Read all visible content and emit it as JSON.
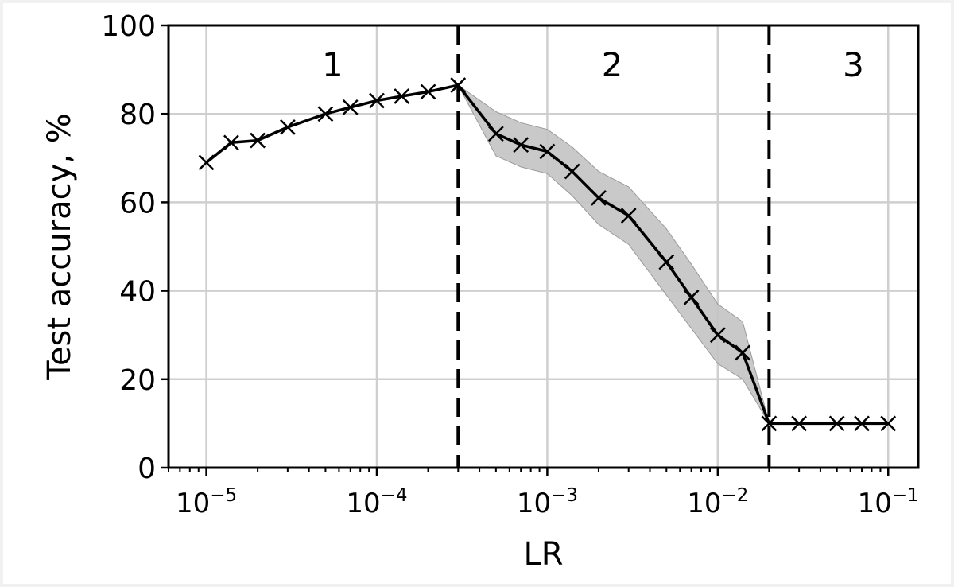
{
  "chart_data": {
    "type": "line",
    "xscale": "log",
    "xlim": [
      6e-06,
      0.15
    ],
    "ylim": [
      0,
      100
    ],
    "xlabel": "LR",
    "ylabel": "Test accuracy, %",
    "grid": true,
    "x_ticks": [
      {
        "value": 1e-05,
        "base": "10",
        "exp": "−5"
      },
      {
        "value": 0.0001,
        "base": "10",
        "exp": "−4"
      },
      {
        "value": 0.001,
        "base": "10",
        "exp": "−3"
      },
      {
        "value": 0.01,
        "base": "10",
        "exp": "−2"
      },
      {
        "value": 0.1,
        "base": "10",
        "exp": "−1"
      }
    ],
    "y_ticks": [
      0,
      20,
      40,
      60,
      80,
      100
    ],
    "vlines": [
      0.0003,
      0.02
    ],
    "regions": [
      {
        "label": "1",
        "x": 5.5e-05
      },
      {
        "label": "2",
        "x": 0.0024
      },
      {
        "label": "3",
        "x": 0.0625
      }
    ],
    "series": [
      {
        "x": [
          1e-05,
          1.4e-05,
          2e-05,
          3e-05,
          5e-05,
          7e-05,
          0.0001,
          0.00014,
          0.0002,
          0.0003,
          0.0005,
          0.0007,
          0.001,
          0.0014,
          0.002,
          0.003,
          0.005,
          0.007,
          0.01,
          0.014,
          0.02,
          0.03,
          0.05,
          0.07,
          0.1
        ],
        "y": [
          69,
          73.5,
          74,
          77,
          80,
          81.5,
          83,
          84,
          85,
          86.5,
          75.5,
          73,
          71.5,
          67,
          61,
          57,
          46.5,
          38.5,
          30,
          26,
          10,
          10,
          10,
          10,
          10
        ],
        "band_lower": [
          69,
          73.5,
          74,
          77,
          80,
          81.5,
          83,
          84,
          85,
          86.5,
          70.5,
          68,
          66.5,
          61.5,
          55,
          50.5,
          39,
          31.5,
          23.5,
          20,
          10,
          10,
          10,
          10,
          10
        ],
        "band_upper": [
          69,
          73.5,
          74,
          77,
          80,
          81.5,
          83,
          84,
          85,
          86.5,
          80.5,
          78,
          76.5,
          72.5,
          67,
          63.5,
          54,
          46,
          37,
          33,
          10,
          10,
          10,
          10,
          10
        ],
        "color": "#000000",
        "marker": "x"
      }
    ],
    "band_color": "#c3c3c3",
    "grid_color": "#cfcfcf"
  }
}
